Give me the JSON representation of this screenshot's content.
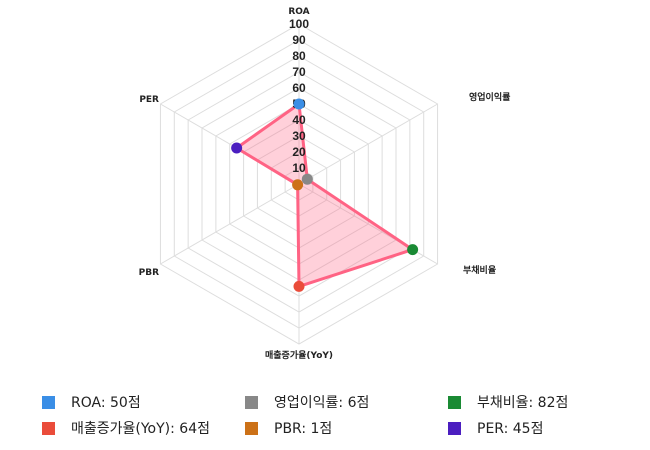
{
  "chart_data": {
    "type": "radar",
    "axes": [
      "ROA",
      "영업이익률",
      "부채비율",
      "매출증가율(YoY)",
      "PBR",
      "PER"
    ],
    "values": [
      50,
      6,
      82,
      64,
      1,
      45
    ],
    "point_colors": [
      "#3a8ee6",
      "#888888",
      "#1a8a34",
      "#ea4c3a",
      "#cc7117",
      "#4b1ec0"
    ],
    "rlim": [
      0,
      100
    ],
    "r_ticks": [
      "10",
      "20",
      "30",
      "40",
      "50",
      "60",
      "70",
      "80",
      "90",
      "100"
    ],
    "line_color": "#ff6384",
    "fill_color": "rgba(255,99,132,0.3)",
    "grid": true,
    "legend_position": "bottom"
  },
  "legend": [
    {
      "label": "ROA: 50점",
      "color": "#3a8ee6"
    },
    {
      "label": "영업이익률: 6점",
      "color": "#888888"
    },
    {
      "label": "부채비율: 82점",
      "color": "#1a8a34"
    },
    {
      "label": "매출증가율(YoY): 64점",
      "color": "#ea4c3a"
    },
    {
      "label": "PBR: 1점",
      "color": "#cc7117"
    },
    {
      "label": "PER: 45점",
      "color": "#4b1ec0"
    }
  ]
}
